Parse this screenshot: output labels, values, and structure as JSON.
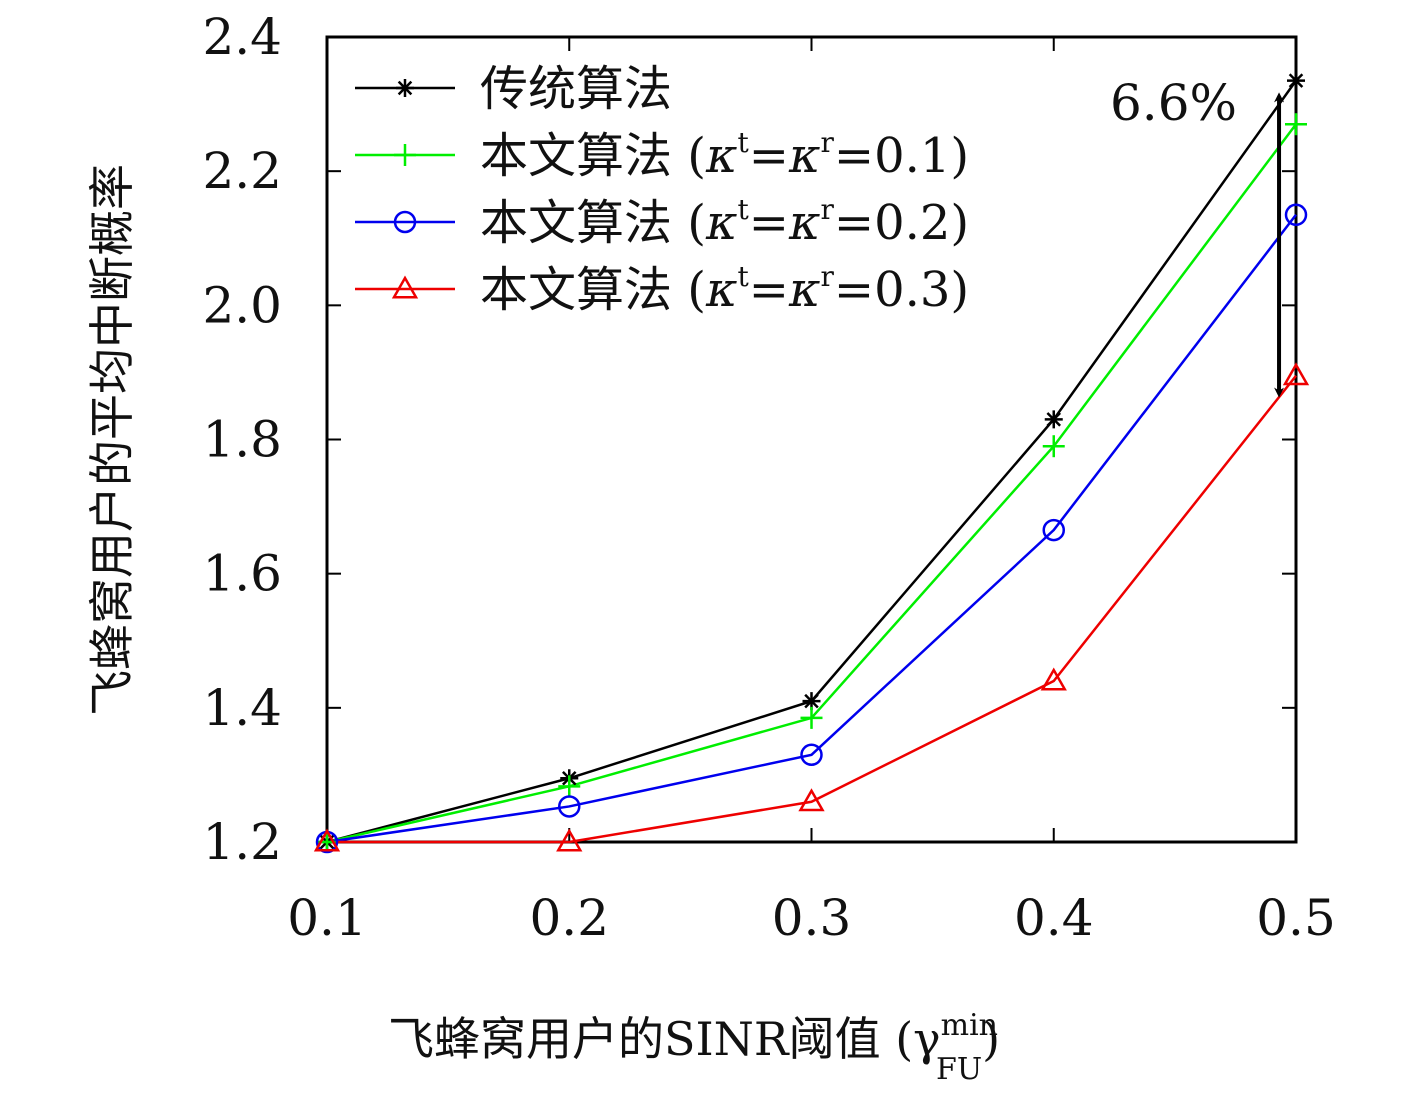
{
  "chart_data": {
    "type": "line",
    "x": [
      0.1,
      0.2,
      0.3,
      0.4,
      0.5
    ],
    "xlim": [
      0.1,
      0.5
    ],
    "ylim": [
      1.2,
      2.4
    ],
    "xticks": [
      "0.1",
      "0.2",
      "0.3",
      "0.4",
      "0.5"
    ],
    "yticks": [
      "1.2",
      "1.4",
      "1.6",
      "1.8",
      "2.0",
      "2.2",
      "2.4"
    ],
    "ytick_values": [
      1.2,
      1.4,
      1.6,
      1.8,
      2.0,
      2.2,
      2.4
    ],
    "xlabel": "飞蜂窝用户的SINR阈值 (γ_FU^min)",
    "xlabel_parts": {
      "main": "飞蜂窝用户的SINR阈值 (γ",
      "sup": "min",
      "sub": "FU",
      "close": ")"
    },
    "ylabel": "飞蜂窝用户的平均中断概率",
    "grid": false,
    "legend_position": "top-left",
    "series": [
      {
        "name": "传统算法",
        "name_parts": {
          "prefix": "传统算法",
          "k1": "",
          "t": "",
          "eq1": "",
          "k2": "",
          "r": "",
          "eq2": ""
        },
        "color": "#000000",
        "marker": "asterisk",
        "values": [
          1.2,
          1.295,
          1.41,
          1.83,
          2.335
        ]
      },
      {
        "name": "本文算法 (κ^t=κ^r=0.1)",
        "name_parts": {
          "prefix": "本文算法 (",
          "k1": "κ",
          "t": "t",
          "eq1": "=",
          "k2": "κ",
          "r": "r",
          "eq2": "=0.1)"
        },
        "color": "#00ee00",
        "marker": "plus",
        "values": [
          1.2,
          1.283,
          1.385,
          1.79,
          2.27
        ]
      },
      {
        "name": "本文算法 (κ^t=κ^r=0.2)",
        "name_parts": {
          "prefix": "本文算法 (",
          "k1": "κ",
          "t": "t",
          "eq1": "=",
          "k2": "κ",
          "r": "r",
          "eq2": "=0.2)"
        },
        "color": "#0000ee",
        "marker": "circle",
        "values": [
          1.2,
          1.253,
          1.33,
          1.665,
          2.135
        ]
      },
      {
        "name": "本文算法 (κ^t=κ^r=0.3)",
        "name_parts": {
          "prefix": "本文算法 (",
          "k1": "κ",
          "t": "t",
          "eq1": "=",
          "k2": "κ",
          "r": "r",
          "eq2": "=0.3)"
        },
        "color": "#ee0000",
        "marker": "triangle",
        "values": [
          1.2,
          1.2,
          1.26,
          1.44,
          1.895
        ]
      }
    ],
    "annotation": {
      "text": "6.6%",
      "arrow_x": 0.493,
      "arrow_from": 2.31,
      "arrow_to": 1.87
    }
  }
}
